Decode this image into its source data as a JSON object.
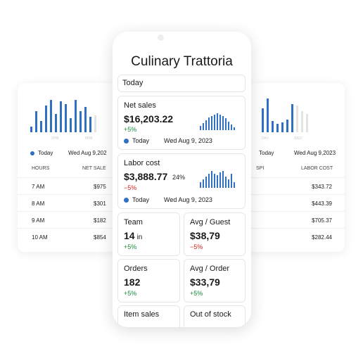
{
  "background_left": {
    "bars": [
      {
        "color": "#2f6fc4",
        "values": [
          8,
          30,
          16,
          38,
          46,
          26,
          44,
          40,
          20,
          46,
          30,
          36,
          22
        ]
      },
      {
        "color": "#e3e3e3",
        "values": [
          24
        ]
      }
    ],
    "axis_labels": [
      "3PM",
      "5PM"
    ],
    "legend": "Today",
    "date": "Wed Aug 9,202",
    "headers": [
      "HOURS",
      "NET SALE"
    ],
    "rows": [
      [
        "7 AM",
        "$975"
      ],
      [
        "8 AM",
        "$301"
      ],
      [
        "9 AM",
        "$182"
      ],
      [
        "10 AM",
        "$854"
      ]
    ]
  },
  "background_right": {
    "bars": [
      {
        "color": "#2f6fc4",
        "values": [
          34,
          48,
          16,
          12,
          14,
          18,
          40
        ]
      },
      {
        "color": "#e3e3e3",
        "values": [
          38,
          30,
          26
        ]
      }
    ],
    "axis_labels": [
      "DAY",
      "WED"
    ],
    "legend": "Today",
    "date": "Wed Aug 9,2023",
    "headers": [
      "SPI",
      "LABOR COST"
    ],
    "values": [
      "$343.72",
      "$443.39",
      "$705.37",
      "$282.44"
    ]
  },
  "app": {
    "title": "Culinary Trattoria",
    "filter": "Today",
    "net_sales": {
      "label": "Net sales",
      "value": "$16,203.22",
      "change": "+5%",
      "change_color": "#1f8a3a",
      "legend": "Today",
      "date": "Wed Aug 9, 2023",
      "spark": {
        "color": "#2f6fc4",
        "values": [
          6,
          10,
          14,
          18,
          20,
          22,
          24,
          22,
          20,
          17,
          12,
          8,
          4
        ]
      }
    },
    "labor_cost": {
      "label": "Labor cost",
      "value": "$3,888.77",
      "percent": "24%",
      "change": "−5%",
      "change_color": "#c8281e",
      "legend": "Today",
      "date": "Wed Aug 9, 2023",
      "spark": {
        "color": "#2f6fc4",
        "values": [
          8,
          12,
          16,
          20,
          24,
          20,
          18,
          22,
          24,
          16,
          12,
          20,
          8
        ]
      }
    },
    "tiles": [
      {
        "label": "Team",
        "value": "14",
        "unit": "in",
        "change": "+5%",
        "change_color": "#1f8a3a"
      },
      {
        "label": "Avg / Guest",
        "value": "$38,79",
        "change": "−5%",
        "change_color": "#c8281e"
      },
      {
        "label": "Orders",
        "value": "182",
        "change": "+5%",
        "change_color": "#1f8a3a"
      },
      {
        "label": "Avg / Order",
        "value": "$33,79",
        "change": "+5%",
        "change_color": "#1f8a3a"
      }
    ],
    "bottom": [
      "Item sales",
      "Out of stock"
    ]
  }
}
